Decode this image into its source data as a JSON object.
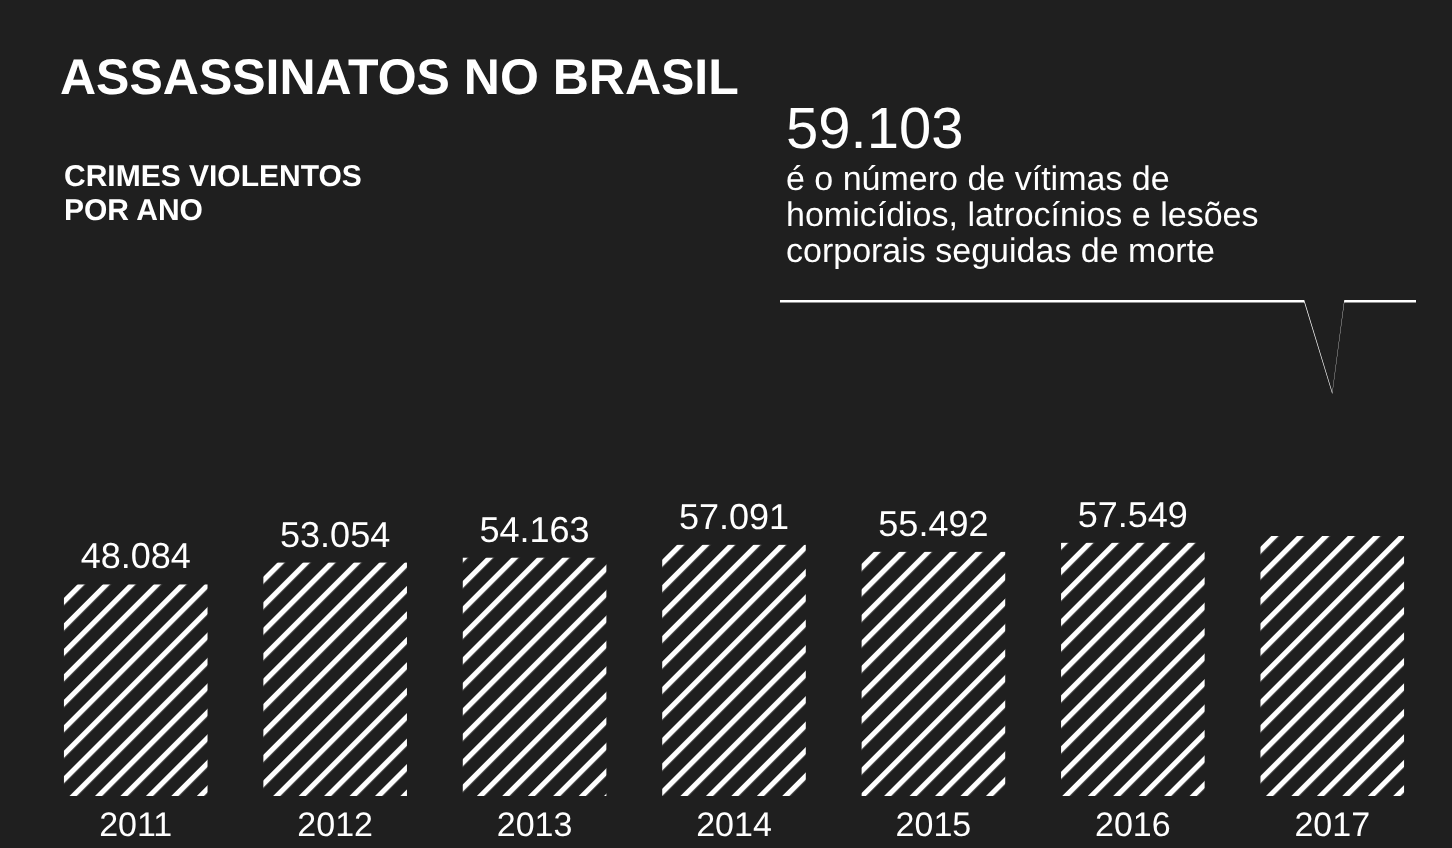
{
  "chart_data": {
    "type": "bar",
    "title": "ASSASSINATOS NO BRASIL",
    "subtitle": "CRIMES VIOLENTOS POR ANO",
    "categories": [
      "2011",
      "2012",
      "2013",
      "2014",
      "2015",
      "2016",
      "2017"
    ],
    "values": [
      48084,
      53054,
      54163,
      57091,
      55492,
      57549,
      59103
    ],
    "value_labels": [
      "48.084",
      "53.054",
      "54.163",
      "57.091",
      "55.492",
      "57.549",
      null
    ],
    "color": "#ffffff",
    "annotations": [
      "59.103",
      "é o número de vítimas de homicídios, latrocínios e lesões corporais seguidas de morte"
    ]
  }
}
